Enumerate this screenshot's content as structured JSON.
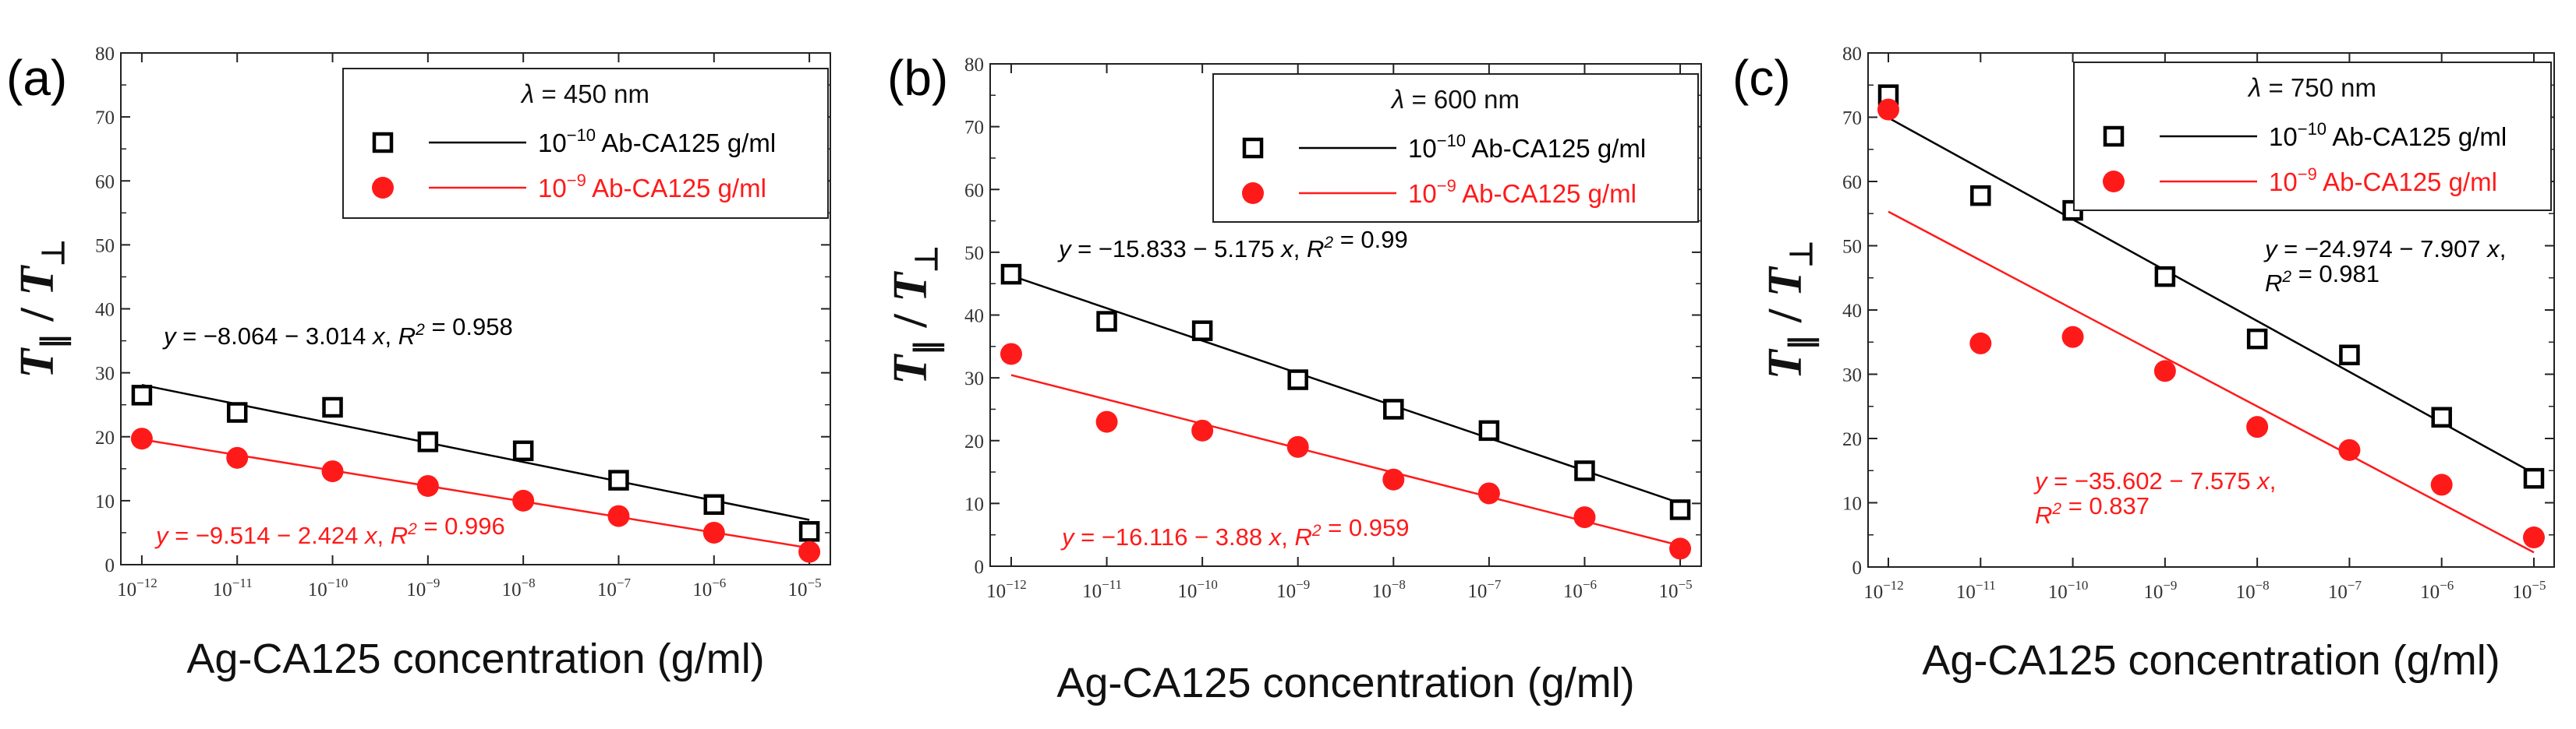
{
  "chart_data": [
    {
      "type": "scatter",
      "panel_label": "(a)",
      "legend_title": "λ = 450 nm",
      "xlabel": "Ag-CA125 concentration (g/ml)",
      "ylabel": "T∥ / T⊥",
      "x_exponents": [
        -12,
        -11,
        -10,
        -9,
        -8,
        -7,
        -6,
        -5
      ],
      "yticks": [
        0,
        10,
        20,
        30,
        40,
        50,
        60,
        70,
        80
      ],
      "ylim": [
        0,
        80
      ],
      "series": [
        {
          "name": "10⁻¹⁰ Ab-CA125 g/ml",
          "legend_prefix": "10",
          "legend_exp": "−10",
          "legend_suffix": " Ab-CA125 g/ml",
          "marker": "open-square",
          "color": "#000000",
          "values": [
            26.5,
            23.8,
            24.6,
            19.2,
            17.8,
            13.2,
            9.4,
            5.2
          ],
          "fit": {
            "intercept": -8.064,
            "slope": -3.014,
            "r2": 0.958,
            "lines": [
              "y = −8.064 − 3.014 x, R² = 0.958"
            ]
          }
        },
        {
          "name": "10⁻⁹ Ab-CA125 g/ml",
          "legend_prefix": "10",
          "legend_exp": "−9",
          "legend_suffix": " Ab-CA125 g/ml",
          "marker": "filled-circle",
          "color": "#ff1a1a",
          "values": [
            19.7,
            16.7,
            14.6,
            12.3,
            10.0,
            7.6,
            5.0,
            2.0
          ],
          "fit": {
            "intercept": -9.514,
            "slope": -2.424,
            "r2": 0.996,
            "lines": [
              "y = −9.514 − 2.424 x, R² = 0.996"
            ]
          }
        }
      ]
    },
    {
      "type": "scatter",
      "panel_label": "(b)",
      "legend_title": "λ = 600 nm",
      "xlabel": "Ag-CA125 concentration (g/ml)",
      "ylabel": "T∥ / T⊥",
      "x_exponents": [
        -12,
        -11,
        -10,
        -9,
        -8,
        -7,
        -6,
        -5
      ],
      "yticks": [
        0,
        10,
        20,
        30,
        40,
        50,
        60,
        70,
        80
      ],
      "ylim": [
        0,
        80
      ],
      "series": [
        {
          "name": "10⁻¹⁰ Ab-CA125 g/ml",
          "legend_prefix": "10",
          "legend_exp": "−10",
          "legend_suffix": " Ab-CA125 g/ml",
          "marker": "open-square",
          "color": "#000000",
          "values": [
            46.5,
            39.0,
            37.5,
            29.7,
            25.0,
            21.6,
            15.2,
            9.0
          ],
          "fit": {
            "intercept": -15.833,
            "slope": -5.175,
            "r2": 0.99,
            "lines": [
              "y = −15.833 − 5.175 x, R² = 0.99"
            ]
          }
        },
        {
          "name": "10⁻⁹ Ab-CA125 g/ml",
          "legend_prefix": "10",
          "legend_exp": "−9",
          "legend_suffix": " Ab-CA125 g/ml",
          "marker": "filled-circle",
          "color": "#ff1a1a",
          "values": [
            33.8,
            23.0,
            21.6,
            19.0,
            13.8,
            11.6,
            7.8,
            2.8
          ],
          "fit": {
            "intercept": -16.116,
            "slope": -3.88,
            "r2": 0.959,
            "lines": [
              "y = −16.116 − 3.88 x, R² = 0.959"
            ]
          }
        }
      ]
    },
    {
      "type": "scatter",
      "panel_label": "(c)",
      "legend_title": "λ = 750 nm",
      "xlabel": "Ag-CA125 concentration (g/ml)",
      "ylabel": "T∥ / T⊥",
      "x_exponents": [
        -12,
        -11,
        -10,
        -9,
        -8,
        -7,
        -6,
        -5
      ],
      "yticks": [
        0,
        10,
        20,
        30,
        40,
        50,
        60,
        70,
        80
      ],
      "ylim": [
        0,
        80
      ],
      "series": [
        {
          "name": "10⁻¹⁰ Ab-CA125 g/ml",
          "legend_prefix": "10",
          "legend_exp": "−10",
          "legend_suffix": " Ab-CA125 g/ml",
          "marker": "open-square",
          "color": "#000000",
          "values": [
            73.5,
            57.8,
            55.5,
            45.2,
            35.5,
            33.0,
            23.3,
            13.8
          ],
          "fit": {
            "intercept": -24.974,
            "slope": -7.907,
            "r2": 0.981,
            "lines": [
              "y = −24.974 − 7.907 x,",
              "R² = 0.981"
            ]
          }
        },
        {
          "name": "10⁻⁹ Ab-CA125 g/ml",
          "legend_prefix": "10",
          "legend_exp": "−9",
          "legend_suffix": " Ab-CA125 g/ml",
          "marker": "filled-circle",
          "color": "#ff1a1a",
          "values": [
            71.2,
            34.8,
            35.8,
            30.5,
            21.8,
            18.2,
            12.8,
            4.6
          ],
          "fit": {
            "intercept": -35.602,
            "slope": -7.575,
            "r2": 0.837,
            "lines": [
              "y = −35.602 − 7.575 x,",
              "R² = 0.837"
            ]
          }
        }
      ]
    }
  ]
}
